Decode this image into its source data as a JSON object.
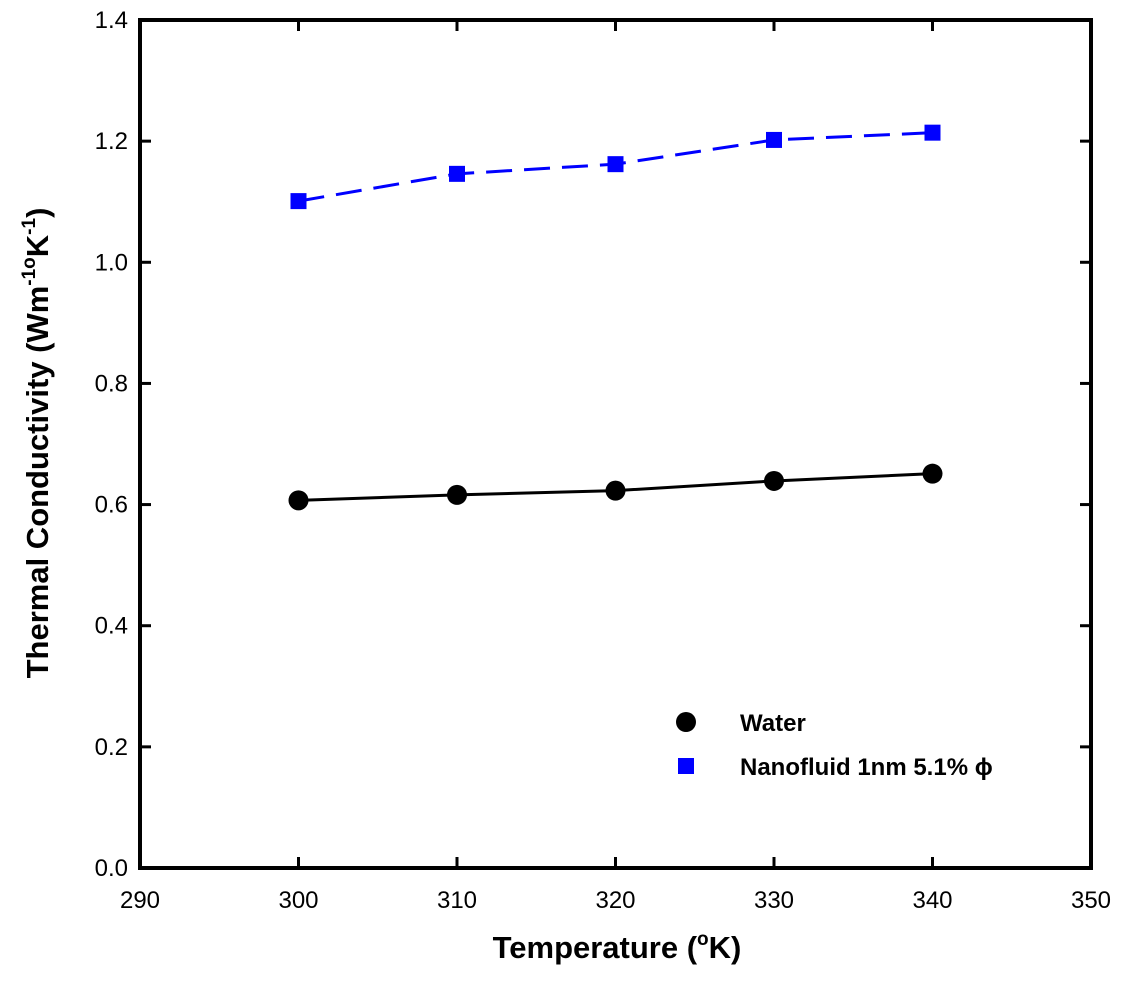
{
  "chart_data": {
    "type": "line",
    "xlabel": {
      "text": "Temperature (",
      "sup": "o",
      "after": "K)"
    },
    "ylabel": {
      "text": "Thermal Conductivity (Wm",
      "sup1": "-1o",
      "mid": "K",
      "sup2": "-1",
      "after": ")"
    },
    "xlim": [
      290,
      350
    ],
    "ylim": [
      0.0,
      1.4
    ],
    "x_ticks": [
      290,
      300,
      310,
      320,
      330,
      340,
      350
    ],
    "x_tick_labels": [
      "290",
      "300",
      "310",
      "320",
      "330",
      "340",
      "350"
    ],
    "y_ticks": [
      0.0,
      0.2,
      0.4,
      0.6,
      0.8,
      1.0,
      1.2,
      1.4
    ],
    "y_tick_labels": [
      "0.0",
      "0.2",
      "0.4",
      "0.6",
      "0.8",
      "1.0",
      "1.2",
      "1.4"
    ],
    "grid": false,
    "legend_position": "bottom-right",
    "x": [
      300,
      310,
      320,
      330,
      340
    ],
    "series": [
      {
        "name": "Water",
        "values": [
          0.607,
          0.616,
          0.623,
          0.639,
          0.651
        ],
        "color": "#000000",
        "marker": "circle",
        "line": "solid"
      },
      {
        "name": "Nanofluid 1nm 5.1% ϕ",
        "values": [
          1.101,
          1.146,
          1.162,
          1.202,
          1.214
        ],
        "color": "#0000ff",
        "marker": "square",
        "line": "dashed"
      }
    ]
  }
}
